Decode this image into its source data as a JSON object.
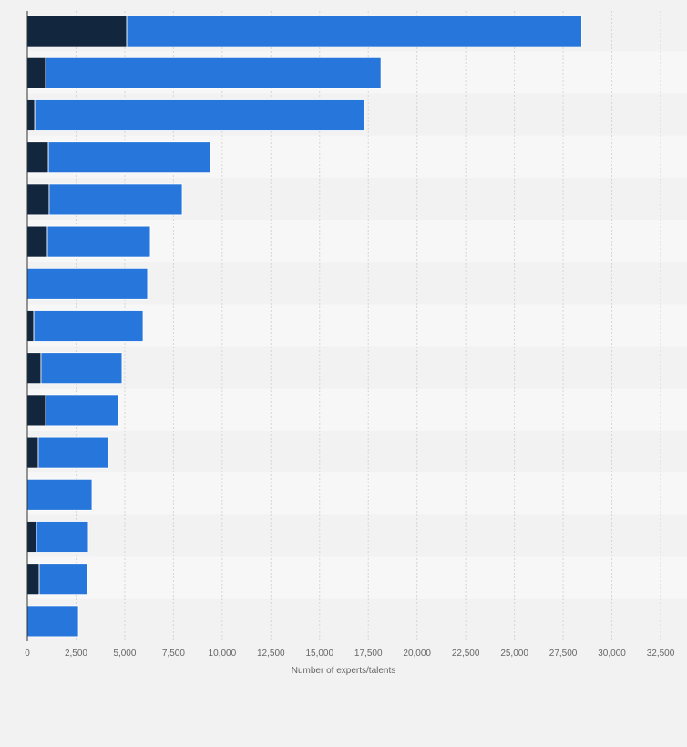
{
  "chart_data": {
    "type": "bar",
    "orientation": "horizontal",
    "stacked": true,
    "title": "",
    "xlabel": "Number of experts/talents",
    "ylabel": "",
    "xlim": [
      0,
      32500
    ],
    "xticks": [
      0,
      2500,
      5000,
      7500,
      10000,
      12500,
      15000,
      17500,
      20000,
      22500,
      25000,
      27500,
      30000,
      32500
    ],
    "xtick_labels": [
      "0",
      "2,500",
      "5,000",
      "7,500",
      "10,000",
      "12,500",
      "15,000",
      "17,500",
      "20,000",
      "22,500",
      "25,000",
      "27,500",
      "30,000",
      "32,500"
    ],
    "grid": true,
    "categories_count": 15,
    "series": [
      {
        "name": "",
        "color": "#12263d",
        "values": [
          5100,
          940,
          380,
          1080,
          1120,
          1030,
          0,
          330,
          700,
          940,
          560,
          0,
          470,
          610,
          0
        ]
      },
      {
        "name": "",
        "color": "#2776db",
        "values": [
          23350,
          17210,
          16920,
          8320,
          6830,
          5280,
          6170,
          5610,
          4160,
          3740,
          3600,
          3320,
          2660,
          2480,
          2620
        ]
      }
    ]
  }
}
